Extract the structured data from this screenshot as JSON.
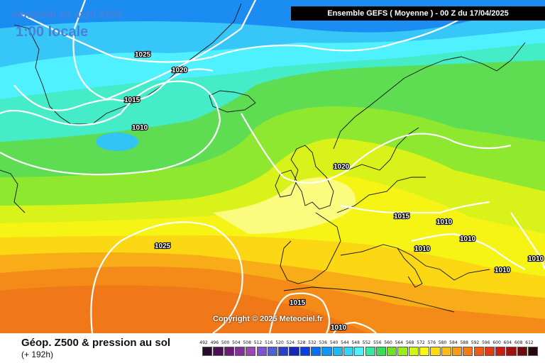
{
  "header": {
    "date_label": "Vendredi 25 avril 2025",
    "time_label": "1:00 locale",
    "run_banner": "Ensemble GEFS  ( Moyenne )  -  00 Z du 17/04/2025"
  },
  "map": {
    "copyright": "Copyright © 2025 Meteociel.fr",
    "isobar_labels": [
      "1025",
      "1020",
      "1015",
      "1010",
      "1020",
      "1015",
      "1010",
      "1010",
      "1010",
      "1010",
      "1010",
      "1025",
      "1015",
      "1010"
    ]
  },
  "footer": {
    "title": "Géop. Z500 & pression au sol",
    "subtitle": "(+ 192h)"
  },
  "legend": {
    "labels": [
      "492",
      "496",
      "500",
      "504",
      "508",
      "512",
      "516",
      "520",
      "524",
      "528",
      "532",
      "536",
      "540",
      "544",
      "548",
      "552",
      "556",
      "560",
      "564",
      "568",
      "572",
      "576",
      "580",
      "584",
      "588",
      "592",
      "596",
      "600",
      "604",
      "608",
      "612"
    ],
    "colors": [
      "#2b0a2e",
      "#4b0f55",
      "#6a1b7a",
      "#84309a",
      "#9a46b8",
      "#7a55cc",
      "#4f5fd6",
      "#2a3fc8",
      "#1527b8",
      "#0a40e0",
      "#0a6ef0",
      "#1495f2",
      "#22b6f5",
      "#35d2f8",
      "#4ff0ff",
      "#38e8a0",
      "#3adc5a",
      "#6ee028",
      "#9aee1a",
      "#d2f512",
      "#f8f810",
      "#fcdc10",
      "#fcbc14",
      "#f89a18",
      "#f47c18",
      "#ee5a18",
      "#e43a14",
      "#c81e12",
      "#a01010",
      "#700a0a",
      "#2a0505"
    ]
  }
}
